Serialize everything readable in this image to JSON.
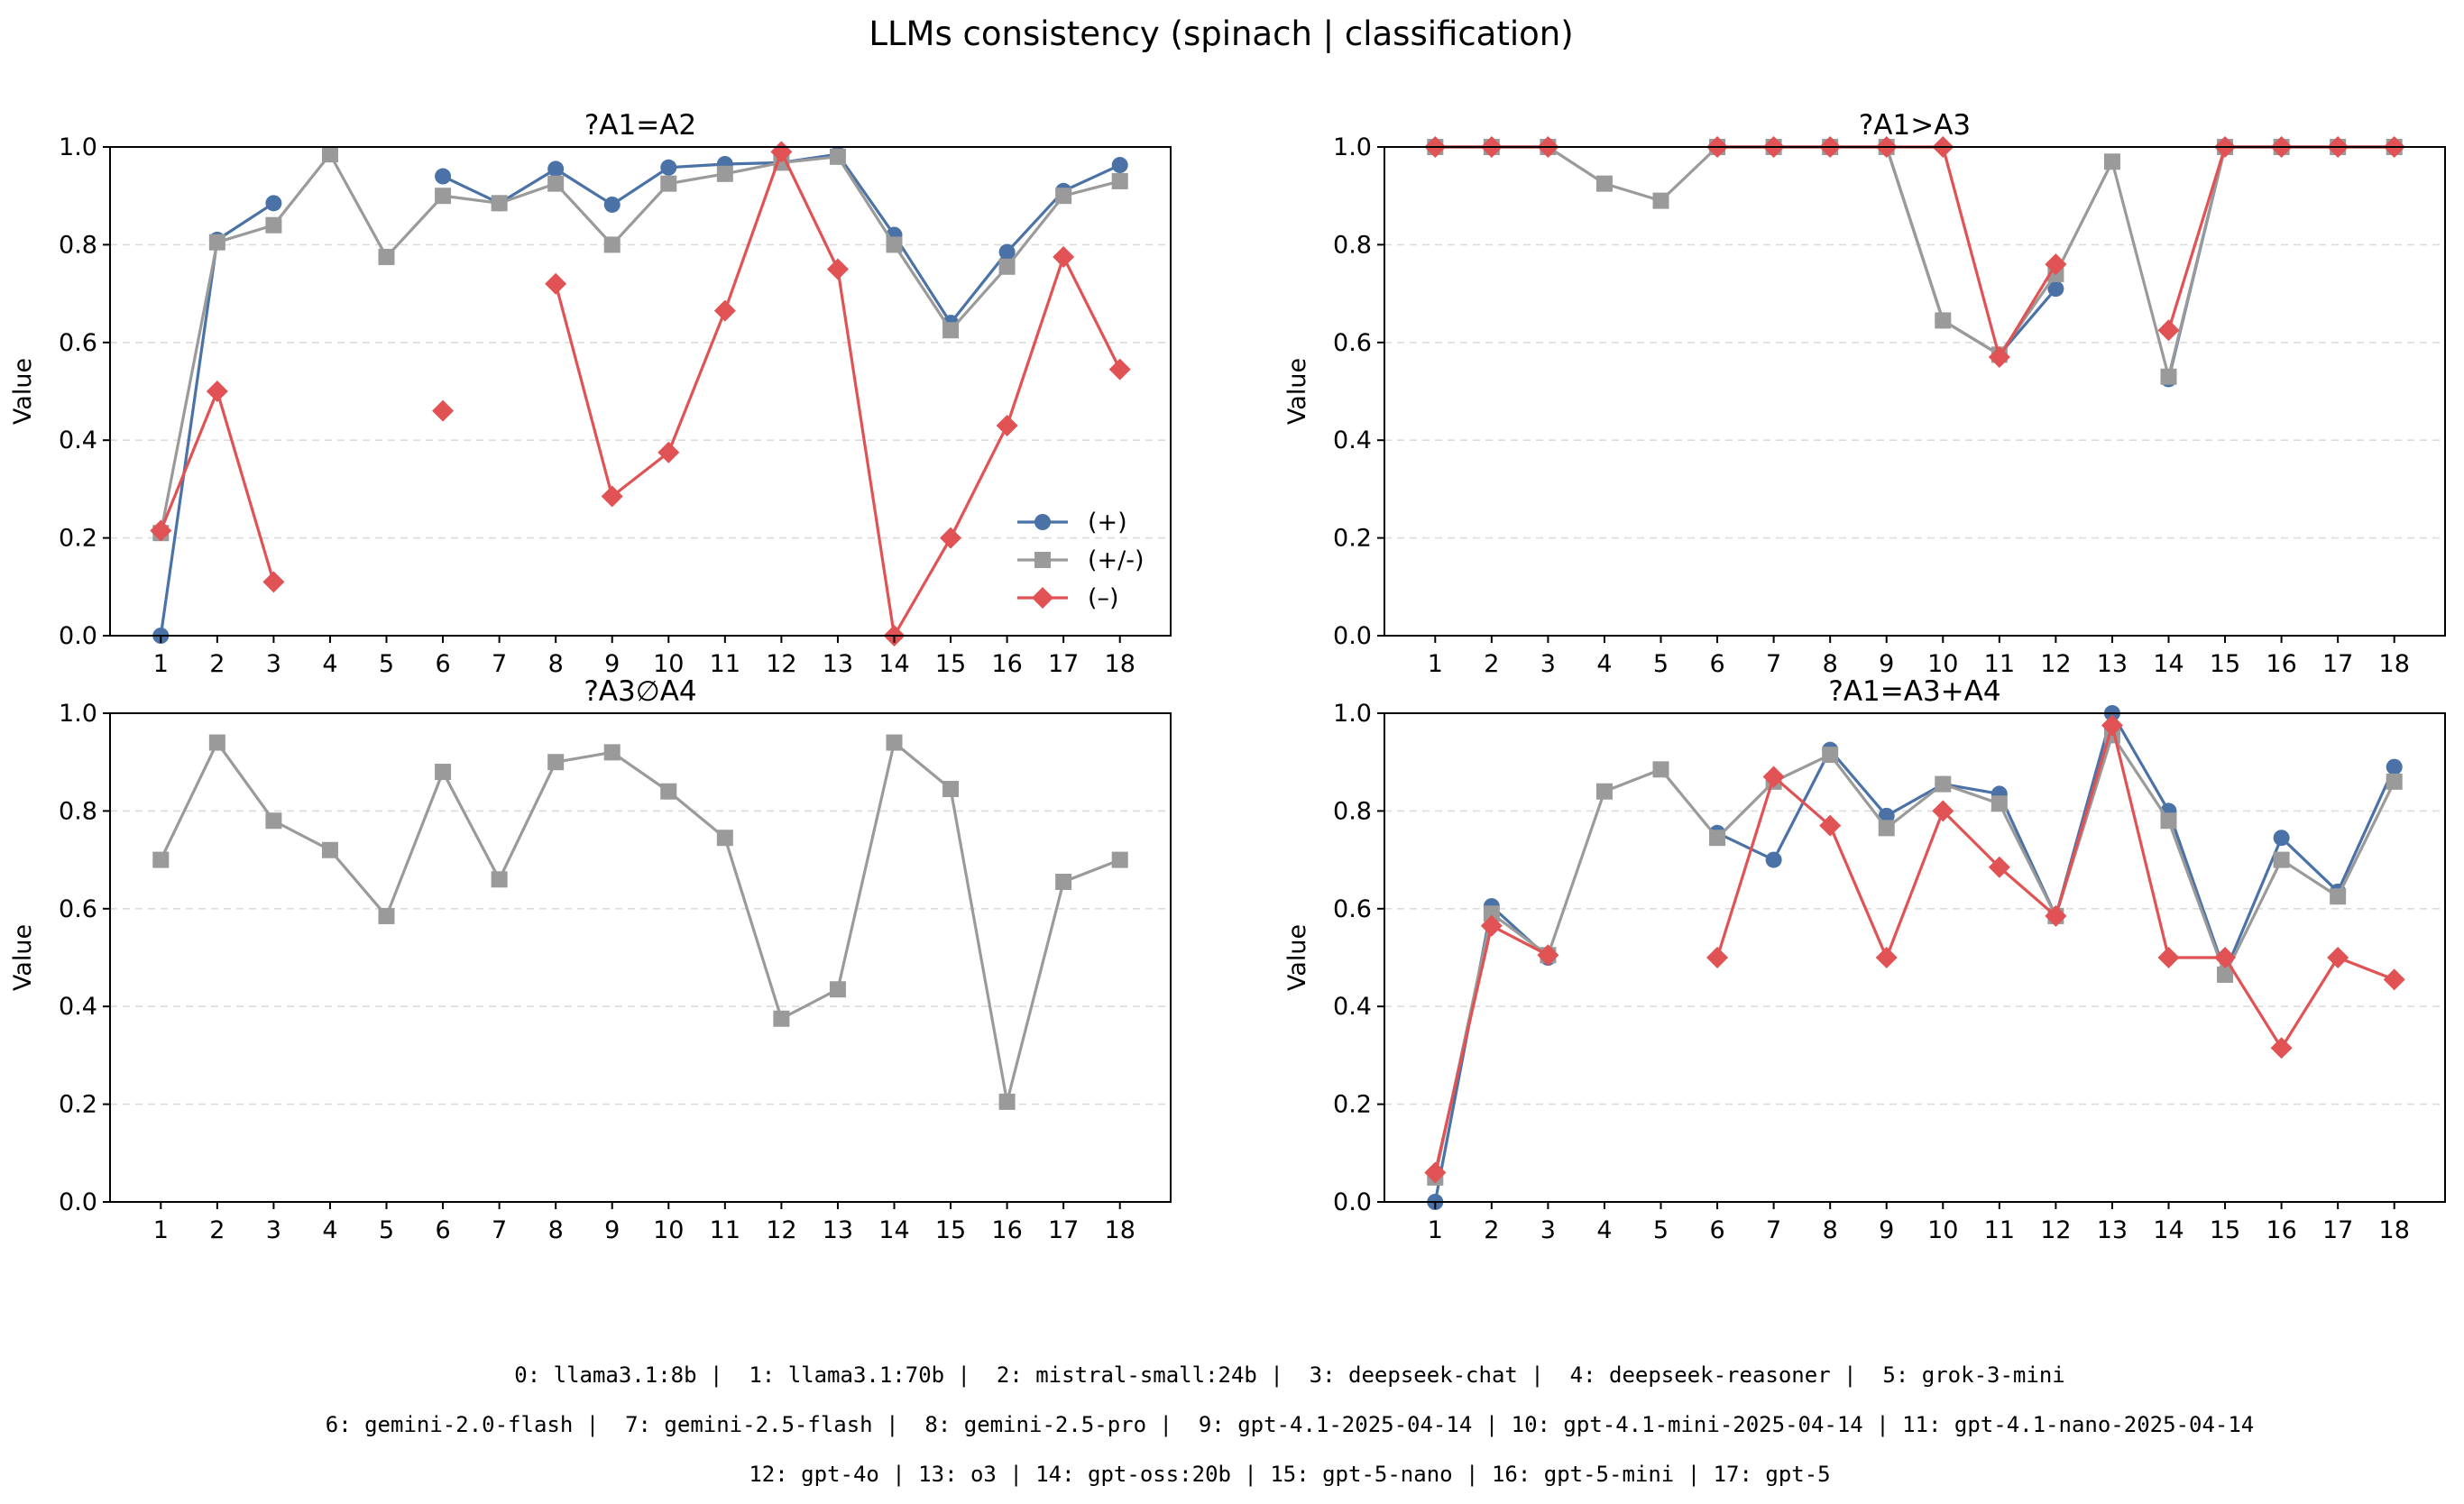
{
  "figure": {
    "title": "LLMs consistency (spinach | classification)",
    "footer_lines": [
      "0: llama3.1:8b |  1: llama3.1:70b |  2: mistral-small:24b |  3: deepseek-chat |  4: deepseek-reasoner |  5: grok-3-mini",
      "6: gemini-2.0-flash |  7: gemini-2.5-flash |  8: gemini-2.5-pro |  9: gpt-4.1-2025-04-14 | 10: gpt-4.1-mini-2025-04-14 | 11: gpt-4.1-nano-2025-04-14",
      "12: gpt-4o | 13: o3 | 14: gpt-oss:20b | 15: gpt-5-nano | 16: gpt-5-mini | 17: gpt-5"
    ],
    "colors": {
      "plus": "#4a72a6",
      "plusminus": "#9a9a9a",
      "minus": "#e05253"
    },
    "legend": {
      "panel": 0,
      "placement": "lower-right"
    }
  },
  "chart_data": [
    {
      "type": "line",
      "title": "?A1=A2",
      "ylabel": "Value",
      "ylim": [
        0,
        1
      ],
      "yticks": [
        "0.0",
        "0.2",
        "0.4",
        "0.6",
        "0.8",
        "1.0"
      ],
      "grid": "y-dashed",
      "x": [
        1,
        2,
        3,
        4,
        5,
        6,
        7,
        8,
        9,
        10,
        11,
        12,
        13,
        14,
        15,
        16,
        17,
        18
      ],
      "series": [
        {
          "name": "(+)",
          "marker": "circle",
          "color": "#4a72a6",
          "values": [
            0.0,
            0.81,
            0.885,
            null,
            null,
            0.94,
            0.885,
            0.955,
            0.882,
            0.958,
            0.965,
            0.968,
            0.985,
            0.82,
            0.64,
            0.785,
            0.91,
            0.963
          ]
        },
        {
          "name": "(+/-)",
          "marker": "square",
          "color": "#9a9a9a",
          "values": [
            0.21,
            0.805,
            0.84,
            0.985,
            0.775,
            0.9,
            0.885,
            0.925,
            0.8,
            0.925,
            0.945,
            0.968,
            0.98,
            0.8,
            0.625,
            0.755,
            0.9,
            0.93
          ]
        },
        {
          "name": "(–)",
          "marker": "diamond",
          "color": "#e05253",
          "values": [
            0.215,
            0.5,
            0.11,
            null,
            null,
            0.46,
            null,
            0.72,
            0.285,
            0.375,
            0.665,
            0.99,
            0.75,
            0.0,
            0.2,
            0.43,
            0.775,
            0.545
          ]
        }
      ]
    },
    {
      "type": "line",
      "title": "?A1>A3",
      "ylabel": "Value",
      "ylim": [
        0,
        1
      ],
      "yticks": [
        "0.0",
        "0.2",
        "0.4",
        "0.6",
        "0.8",
        "1.0"
      ],
      "grid": "y-dashed",
      "x": [
        1,
        2,
        3,
        4,
        5,
        6,
        7,
        8,
        9,
        10,
        11,
        12,
        13,
        14,
        15,
        16,
        17,
        18
      ],
      "series": [
        {
          "name": "(+)",
          "marker": "circle",
          "color": "#4a72a6",
          "values": [
            1.0,
            1.0,
            1.0,
            null,
            null,
            1.0,
            1.0,
            1.0,
            1.0,
            0.645,
            0.575,
            0.71,
            null,
            0.525,
            1.0,
            1.0,
            1.0,
            1.0
          ]
        },
        {
          "name": "(+/-)",
          "marker": "square",
          "color": "#9a9a9a",
          "values": [
            1.0,
            1.0,
            1.0,
            0.925,
            0.89,
            1.0,
            1.0,
            1.0,
            1.0,
            0.645,
            0.575,
            0.74,
            0.97,
            0.53,
            1.0,
            1.0,
            1.0,
            1.0
          ]
        },
        {
          "name": "(–)",
          "marker": "diamond",
          "color": "#e05253",
          "values": [
            1.0,
            1.0,
            1.0,
            null,
            null,
            1.0,
            1.0,
            1.0,
            1.0,
            1.0,
            0.57,
            0.76,
            null,
            0.625,
            1.0,
            1.0,
            1.0,
            1.0
          ]
        }
      ]
    },
    {
      "type": "line",
      "title": "?A3∅A4",
      "ylabel": "Value",
      "ylim": [
        0,
        1
      ],
      "yticks": [
        "0.0",
        "0.2",
        "0.4",
        "0.6",
        "0.8",
        "1.0"
      ],
      "grid": "y-dashed",
      "x": [
        1,
        2,
        3,
        4,
        5,
        6,
        7,
        8,
        9,
        10,
        11,
        12,
        13,
        14,
        15,
        16,
        17,
        18
      ],
      "series": [
        {
          "name": "(+/-)",
          "marker": "square",
          "color": "#9a9a9a",
          "values": [
            0.7,
            0.94,
            0.78,
            0.72,
            0.585,
            0.88,
            0.66,
            0.9,
            0.92,
            0.84,
            0.745,
            0.375,
            0.435,
            0.94,
            0.845,
            0.205,
            0.655,
            0.7
          ]
        }
      ]
    },
    {
      "type": "line",
      "title": "?A1=A3+A4",
      "ylabel": "Value",
      "ylim": [
        0,
        1
      ],
      "yticks": [
        "0.0",
        "0.2",
        "0.4",
        "0.6",
        "0.8",
        "1.0"
      ],
      "grid": "y-dashed",
      "x": [
        1,
        2,
        3,
        4,
        5,
        6,
        7,
        8,
        9,
        10,
        11,
        12,
        13,
        14,
        15,
        16,
        17,
        18
      ],
      "series": [
        {
          "name": "(+)",
          "marker": "circle",
          "color": "#4a72a6",
          "values": [
            0.0,
            0.605,
            0.5,
            null,
            null,
            0.755,
            0.7,
            0.925,
            0.79,
            0.855,
            0.835,
            0.585,
            1.0,
            0.8,
            0.47,
            0.745,
            0.635,
            0.89
          ]
        },
        {
          "name": "(+/-)",
          "marker": "square",
          "color": "#9a9a9a",
          "values": [
            0.05,
            0.59,
            0.505,
            0.84,
            0.885,
            0.745,
            0.86,
            0.915,
            0.765,
            0.855,
            0.815,
            0.585,
            0.955,
            0.78,
            0.465,
            0.7,
            0.625,
            0.86
          ]
        },
        {
          "name": "(–)",
          "marker": "diamond",
          "color": "#e05253",
          "values": [
            0.06,
            0.565,
            0.505,
            null,
            null,
            0.5,
            0.87,
            0.77,
            0.5,
            0.8,
            0.685,
            0.585,
            0.975,
            0.5,
            0.5,
            0.315,
            0.5,
            0.455
          ]
        }
      ]
    }
  ]
}
